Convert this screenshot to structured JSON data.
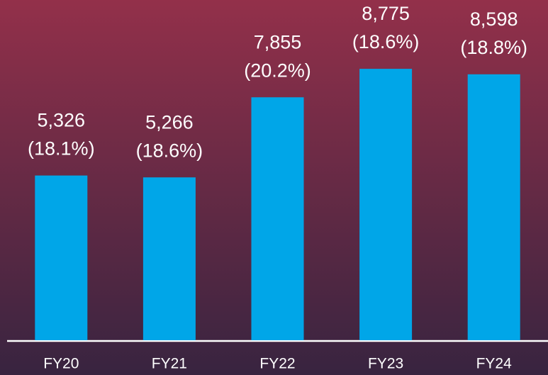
{
  "chart_data": {
    "type": "bar",
    "categories": [
      "FY20",
      "FY21",
      "FY22",
      "FY23",
      "FY24"
    ],
    "values": [
      5326,
      5266,
      7855,
      8775,
      8598
    ],
    "value_labels": [
      "5,326",
      "5,266",
      "7,855",
      "8,775",
      "8,598"
    ],
    "margin_labels": [
      "(18.1%)",
      "(18.6%)",
      "(20.2%)",
      "(18.6%)",
      "(18.8%)"
    ],
    "color": "#00a6e8",
    "ylim": [
      0,
      11000
    ]
  }
}
